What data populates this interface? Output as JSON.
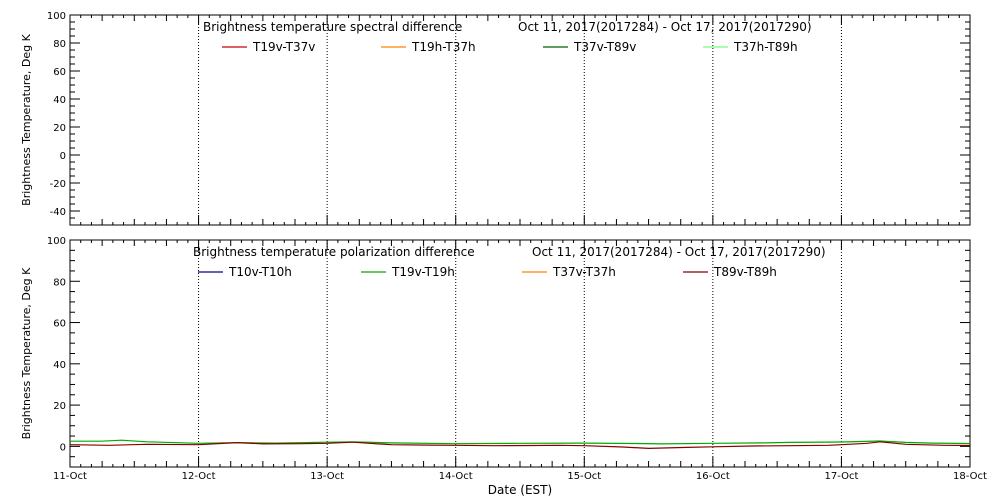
{
  "chart_data": [
    {
      "type": "line",
      "title": "Brightness temperature spectral difference",
      "date_range": "Oct 11, 2017(2017284) - Oct 17, 2017(2017290)",
      "ylabel": "Brightness Temperature, Deg K",
      "xlabel": "",
      "ylim": [
        -50,
        100
      ],
      "xlim": [
        0,
        7
      ],
      "y_ticks": [
        -40,
        -20,
        0,
        20,
        40,
        60,
        80,
        100
      ],
      "x_ticks": [
        0,
        1,
        2,
        3,
        4,
        5,
        6,
        7
      ],
      "x_tick_labels": [
        "11-Oct",
        "12-Oct",
        "13-Oct",
        "14-Oct",
        "15-Oct",
        "16-Oct",
        "17-Oct",
        "18-Oct"
      ],
      "grid": "vertical-dotted",
      "legend": "top",
      "series": [
        {
          "name": "T19v-T37v",
          "color": "#cc0000",
          "x": [],
          "y": []
        },
        {
          "name": "T19h-T37h",
          "color": "#ff8000",
          "x": [],
          "y": []
        },
        {
          "name": "T37v-T89v",
          "color": "#006400",
          "x": [],
          "y": []
        },
        {
          "name": "T37h-T89h",
          "color": "#7cfc7c",
          "x": [],
          "y": []
        }
      ]
    },
    {
      "type": "line",
      "title": "Brightness temperature polarization difference",
      "date_range": "Oct 11, 2017(2017284) - Oct 17, 2017(2017290)",
      "ylabel": "Brightness Temperature, Deg K",
      "xlabel": "Date (EST)",
      "ylim": [
        -10,
        100
      ],
      "xlim": [
        0,
        7
      ],
      "y_ticks": [
        0,
        20,
        40,
        60,
        80,
        100
      ],
      "x_ticks": [
        0,
        1,
        2,
        3,
        4,
        5,
        6,
        7
      ],
      "x_tick_labels": [
        "11-Oct",
        "12-Oct",
        "13-Oct",
        "14-Oct",
        "15-Oct",
        "16-Oct",
        "17-Oct",
        "18-Oct"
      ],
      "grid": "vertical-dotted",
      "legend": "top",
      "series": [
        {
          "name": "T10v-T10h",
          "color": "#000099",
          "x": [],
          "y": []
        },
        {
          "name": "T19v-T19h",
          "color": "#00aa00",
          "x": [
            0,
            0.25,
            0.4,
            0.6,
            1,
            1.3,
            1.6,
            2,
            2.2,
            2.5,
            3,
            3.5,
            4,
            4.4,
            4.6,
            5,
            5.4,
            5.6,
            6,
            6.3,
            6.5,
            6.7,
            7
          ],
          "y": [
            2.5,
            2.5,
            3,
            2.2,
            1.5,
            1.8,
            1.6,
            2,
            2.2,
            1.7,
            1.3,
            1.5,
            1.6,
            1.4,
            1.2,
            1.5,
            1.7,
            1.9,
            2.1,
            2.6,
            1.9,
            1.6,
            1.4
          ]
        },
        {
          "name": "T37v-T37h",
          "color": "#ff8000",
          "x": [],
          "y": []
        },
        {
          "name": "T89v-T89h",
          "color": "#880000",
          "x": [
            0,
            0.3,
            0.6,
            1,
            1.3,
            1.5,
            1.8,
            2,
            2.2,
            2.5,
            2.8,
            3,
            3.3,
            3.6,
            3.8,
            4,
            4.3,
            4.5,
            4.8,
            5,
            5.3,
            5.6,
            5.9,
            6,
            6.2,
            6.3,
            6.5,
            6.8,
            7
          ],
          "y": [
            0.8,
            0.5,
            1,
            0.8,
            1.8,
            1.2,
            1.3,
            1.5,
            2,
            0.8,
            0.6,
            0.5,
            0.3,
            0.4,
            0.5,
            0.3,
            -0.3,
            -1,
            -0.5,
            -0.2,
            0.2,
            0.3,
            0.5,
            0.8,
            1.5,
            2.2,
            1,
            0.5,
            0.4
          ]
        }
      ]
    }
  ]
}
